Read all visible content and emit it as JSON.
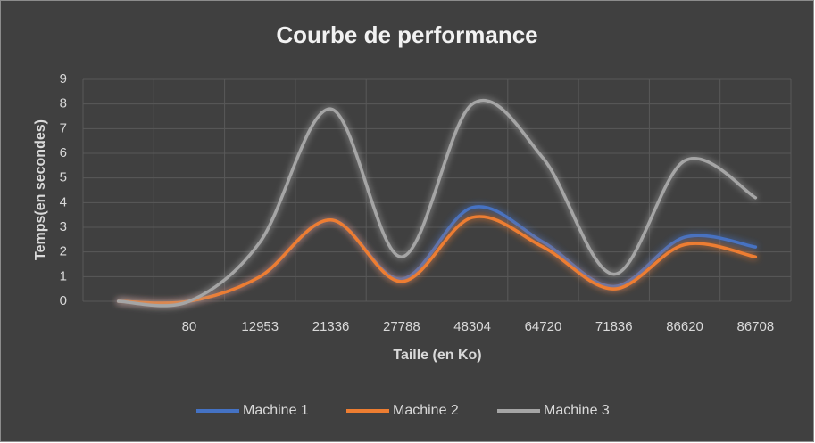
{
  "chart_data": {
    "type": "line",
    "title": "Courbe de performance",
    "x_label": "Taille (en Ko)",
    "y_label": "Temps(en secondes)",
    "categories": [
      null,
      "80",
      "12953",
      "21336",
      "27788",
      "48304",
      "64720",
      "71836",
      "86620",
      "86708"
    ],
    "series": [
      {
        "name": "Machine 1",
        "color": "#4472c4",
        "values": [
          0,
          0,
          1.0,
          3.3,
          0.9,
          3.8,
          2.4,
          0.6,
          2.6,
          2.2
        ]
      },
      {
        "name": "Machine 2",
        "color": "#ed7d31",
        "values": [
          0,
          0,
          1.0,
          3.3,
          0.8,
          3.4,
          2.2,
          0.5,
          2.3,
          1.8
        ]
      },
      {
        "name": "Machine 3",
        "color": "#a5a5a5",
        "values": [
          0,
          0,
          2.4,
          7.8,
          1.8,
          8.0,
          5.8,
          1.1,
          5.7,
          4.2
        ]
      }
    ],
    "ylim": [
      0,
      9
    ],
    "yticks": [
      0,
      1,
      2,
      3,
      4,
      5,
      6,
      7,
      8,
      9
    ],
    "grid": true,
    "smooth": true,
    "legend": "bottom"
  }
}
